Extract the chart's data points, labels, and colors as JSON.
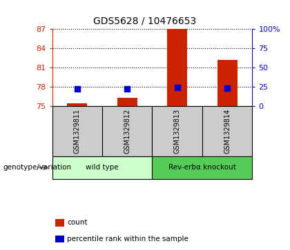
{
  "title": "GDS5628 / 10476653",
  "samples": [
    "GSM1329811",
    "GSM1329812",
    "GSM1329813",
    "GSM1329814"
  ],
  "red_values": [
    75.5,
    76.3,
    87.0,
    82.2
  ],
  "blue_values": [
    77.7,
    77.7,
    77.9,
    77.85
  ],
  "ylim_left": [
    75,
    87
  ],
  "ylim_right": [
    0,
    100
  ],
  "yticks_left": [
    75,
    78,
    81,
    84,
    87
  ],
  "yticks_right": [
    0,
    25,
    50,
    75,
    100
  ],
  "ytick_labels_right": [
    "0",
    "25",
    "50",
    "75",
    "100%"
  ],
  "bar_color": "#cc2200",
  "dot_color": "#0000cc",
  "groups": [
    {
      "label": "wild type",
      "samples": [
        0,
        1
      ],
      "color": "#ccffcc"
    },
    {
      "label": "Rev-erbα knockout",
      "samples": [
        2,
        3
      ],
      "color": "#55cc55"
    }
  ],
  "sample_bg_color": "#cccccc",
  "genotype_label": "genotype/variation",
  "legend_items": [
    {
      "color": "#cc2200",
      "label": "count"
    },
    {
      "color": "#0000cc",
      "label": "percentile rank within the sample"
    }
  ],
  "bar_width": 0.4,
  "dot_size": 40,
  "title_color": "#000000",
  "left_axis_color": "#cc2200",
  "right_axis_color": "#0000cc"
}
